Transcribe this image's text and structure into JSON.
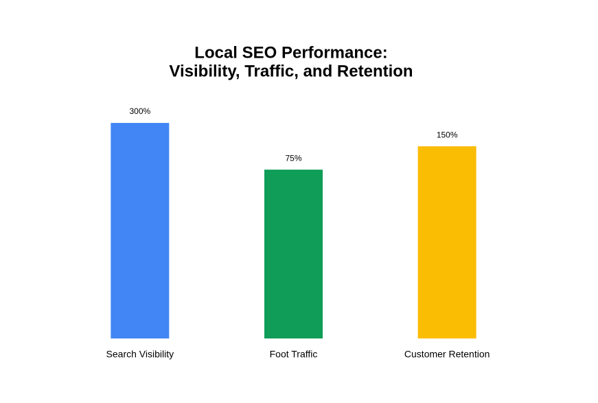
{
  "chart_data": {
    "type": "bar",
    "title": [
      "Local SEO Performance:",
      "Visibility, Traffic, and Retention"
    ],
    "categories": [
      "Search Visibility",
      "Foot Traffic",
      "Customer Retention"
    ],
    "values": [
      300,
      75,
      150
    ],
    "value_labels": [
      "300%",
      "75%",
      "150%"
    ],
    "colors": [
      "#4285f4",
      "#0f9d58",
      "#fbbc04"
    ],
    "log_scale": true,
    "ylim": [
      0.5,
      500
    ],
    "grid": false
  }
}
